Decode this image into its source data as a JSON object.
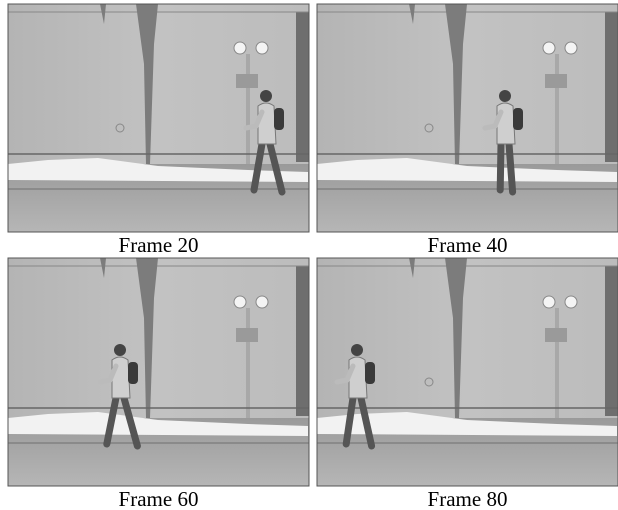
{
  "frames": [
    {
      "caption": "Frame 20"
    },
    {
      "caption": "Frame 40"
    },
    {
      "caption": "Frame 60"
    },
    {
      "caption": "Frame 80"
    }
  ]
}
